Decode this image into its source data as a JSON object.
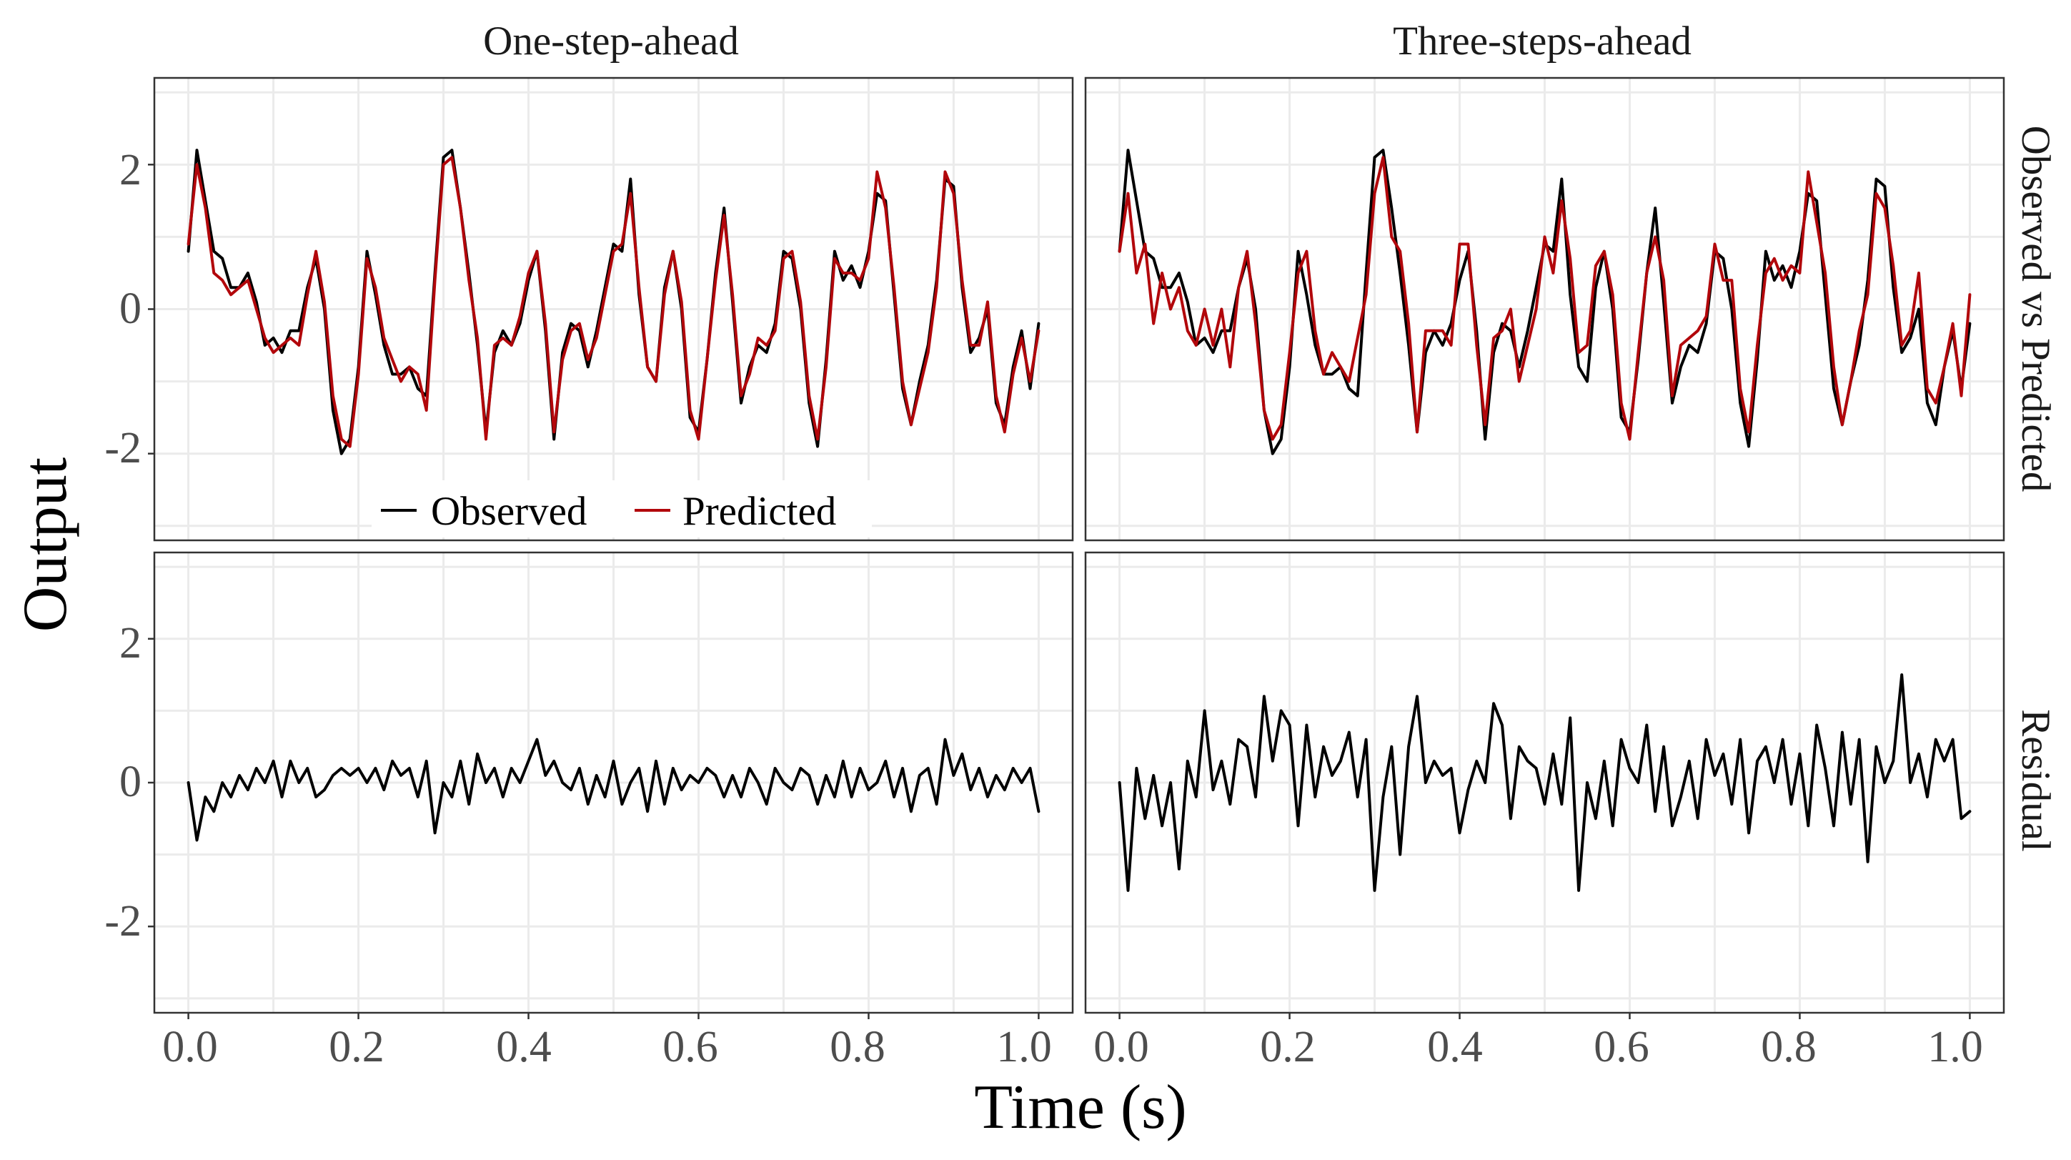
{
  "chart_data": {
    "type": "line",
    "facets": {
      "columns": [
        "One-step-ahead",
        "Three-steps-ahead"
      ],
      "rows": [
        "Observed vs Predicted",
        "Residual"
      ]
    },
    "xlabel": "Time (s)",
    "ylabel": "Output",
    "xlim": [
      0.0,
      1.0
    ],
    "ylim": [
      -3.2,
      3.2
    ],
    "x_ticks": [
      "0.0",
      "0.2",
      "0.4",
      "0.6",
      "0.8",
      "1.0"
    ],
    "x_tick_values": [
      0.0,
      0.2,
      0.4,
      0.6,
      0.8,
      1.0
    ],
    "y_ticks": [
      "-2",
      "0",
      "2"
    ],
    "y_tick_values": [
      -2,
      0,
      2
    ],
    "legend": {
      "position": "bottom-center of top-left panel",
      "entries": [
        {
          "label": "Observed",
          "color": "#000000"
        },
        {
          "label": "Predicted",
          "color": "#b2070b"
        }
      ]
    },
    "x": [
      0.0,
      0.01,
      0.02,
      0.03,
      0.04,
      0.05,
      0.06,
      0.07,
      0.08,
      0.09,
      0.1,
      0.11,
      0.12,
      0.13,
      0.14,
      0.15,
      0.16,
      0.17,
      0.18,
      0.19,
      0.2,
      0.21,
      0.22,
      0.23,
      0.24,
      0.25,
      0.26,
      0.27,
      0.28,
      0.29,
      0.3,
      0.31,
      0.32,
      0.33,
      0.34,
      0.35,
      0.36,
      0.37,
      0.38,
      0.39,
      0.4,
      0.41,
      0.42,
      0.43,
      0.44,
      0.45,
      0.46,
      0.47,
      0.48,
      0.49,
      0.5,
      0.51,
      0.52,
      0.53,
      0.54,
      0.55,
      0.56,
      0.57,
      0.58,
      0.59,
      0.6,
      0.61,
      0.62,
      0.63,
      0.64,
      0.65,
      0.66,
      0.67,
      0.68,
      0.69,
      0.7,
      0.71,
      0.72,
      0.73,
      0.74,
      0.75,
      0.76,
      0.77,
      0.78,
      0.79,
      0.8,
      0.81,
      0.82,
      0.83,
      0.84,
      0.85,
      0.86,
      0.87,
      0.88,
      0.89,
      0.9,
      0.91,
      0.92,
      0.93,
      0.94,
      0.95,
      0.96,
      0.97,
      0.98,
      0.99,
      1.0
    ],
    "observed": [
      0.8,
      2.2,
      1.5,
      0.8,
      0.7,
      0.3,
      0.3,
      0.5,
      0.1,
      -0.5,
      -0.4,
      -0.6,
      -0.3,
      -0.3,
      0.3,
      0.7,
      0.0,
      -1.4,
      -2.0,
      -1.8,
      -0.8,
      0.8,
      0.2,
      -0.5,
      -0.9,
      -0.9,
      -0.8,
      -1.1,
      -1.2,
      0.5,
      2.1,
      2.2,
      1.4,
      0.5,
      -0.5,
      -1.7,
      -0.6,
      -0.3,
      -0.5,
      -0.2,
      0.4,
      0.8,
      -0.3,
      -1.8,
      -0.6,
      -0.2,
      -0.3,
      -0.8,
      -0.3,
      0.3,
      0.9,
      0.8,
      1.8,
      0.2,
      -0.8,
      -1.0,
      0.3,
      0.8,
      0.0,
      -1.5,
      -1.7,
      -0.7,
      0.5,
      1.4,
      0.1,
      -1.3,
      -0.8,
      -0.5,
      -0.6,
      -0.2,
      0.8,
      0.7,
      0.0,
      -1.3,
      -1.9,
      -0.7,
      0.8,
      0.4,
      0.6,
      0.3,
      0.8,
      1.6,
      1.5,
      0.2,
      -1.1,
      -1.6,
      -1.0,
      -0.5,
      0.4,
      1.8,
      1.7,
      0.3,
      -0.6,
      -0.4,
      0.0,
      -1.3,
      -1.6,
      -0.8,
      -0.3,
      -1.1,
      -0.2
    ],
    "predicted_one_step": [
      0.9,
      2.0,
      1.4,
      0.5,
      0.4,
      0.2,
      0.3,
      0.4,
      0.0,
      -0.4,
      -0.6,
      -0.5,
      -0.4,
      -0.5,
      0.2,
      0.8,
      0.1,
      -1.2,
      -1.8,
      -1.9,
      -0.9,
      0.7,
      0.3,
      -0.4,
      -0.7,
      -1.0,
      -0.8,
      -0.9,
      -1.4,
      0.4,
      2.0,
      2.1,
      1.4,
      0.4,
      -0.4,
      -1.8,
      -0.5,
      -0.4,
      -0.5,
      -0.1,
      0.5,
      0.8,
      -0.2,
      -1.7,
      -0.7,
      -0.3,
      -0.2,
      -0.7,
      -0.4,
      0.2,
      0.8,
      0.9,
      1.6,
      0.3,
      -0.8,
      -1.0,
      0.2,
      0.8,
      0.1,
      -1.4,
      -1.8,
      -0.7,
      0.4,
      1.3,
      0.2,
      -1.2,
      -0.9,
      -0.4,
      -0.5,
      -0.3,
      0.7,
      0.8,
      0.1,
      -1.2,
      -1.8,
      -0.8,
      0.7,
      0.5,
      0.5,
      0.4,
      0.7,
      1.9,
      1.4,
      0.3,
      -1.0,
      -1.6,
      -1.1,
      -0.6,
      0.3,
      1.9,
      1.6,
      0.4,
      -0.5,
      -0.5,
      0.1,
      -1.2,
      -1.7,
      -0.9,
      -0.4,
      -1.0,
      -0.3
    ],
    "predicted_three_step": [
      0.8,
      1.6,
      0.5,
      0.9,
      -0.2,
      0.5,
      0.0,
      0.3,
      -0.3,
      -0.5,
      0.0,
      -0.5,
      0.0,
      -0.8,
      0.3,
      0.8,
      -0.2,
      -1.4,
      -1.8,
      -1.6,
      -0.6,
      0.5,
      0.8,
      -0.3,
      -0.9,
      -0.6,
      -0.8,
      -1.0,
      -0.4,
      0.2,
      1.6,
      2.1,
      1.0,
      0.8,
      -0.2,
      -1.7,
      -0.3,
      -0.3,
      -0.3,
      -0.5,
      0.9,
      0.9,
      -0.5,
      -1.6,
      -0.4,
      -0.3,
      0.0,
      -1.0,
      -0.5,
      0.0,
      1.0,
      0.5,
      1.5,
      0.7,
      -0.6,
      -0.5,
      0.6,
      0.8,
      0.2,
      -1.3,
      -1.8,
      -0.6,
      0.5,
      1.0,
      0.4,
      -1.2,
      -0.5,
      -0.4,
      -0.3,
      -0.1,
      0.9,
      0.4,
      0.4,
      -1.1,
      -1.7,
      -0.5,
      0.5,
      0.7,
      0.4,
      0.6,
      0.5,
      1.9,
      1.2,
      0.5,
      -0.8,
      -1.6,
      -1.0,
      -0.3,
      0.2,
      1.6,
      1.4,
      0.6,
      -0.5,
      -0.3,
      0.5,
      -1.1,
      -1.3,
      -0.8,
      -0.2,
      -1.2,
      0.2
    ],
    "residual_one_step": [
      0.0,
      -0.8,
      -0.2,
      -0.4,
      0.0,
      -0.2,
      0.1,
      -0.1,
      0.2,
      0.0,
      0.3,
      -0.2,
      0.3,
      0.0,
      0.2,
      -0.2,
      -0.1,
      0.1,
      0.2,
      0.1,
      0.2,
      0.0,
      0.2,
      -0.1,
      0.3,
      0.1,
      0.2,
      -0.2,
      0.3,
      -0.7,
      0.0,
      -0.2,
      0.3,
      -0.3,
      0.4,
      0.0,
      0.2,
      -0.2,
      0.2,
      0.0,
      0.3,
      0.6,
      0.1,
      0.3,
      0.0,
      -0.1,
      0.2,
      -0.3,
      0.1,
      -0.2,
      0.3,
      -0.3,
      0.0,
      0.2,
      -0.4,
      0.3,
      -0.3,
      0.2,
      -0.1,
      0.1,
      0.0,
      0.2,
      0.1,
      -0.2,
      0.1,
      -0.2,
      0.2,
      0.0,
      -0.3,
      0.2,
      0.0,
      -0.1,
      0.2,
      0.1,
      -0.3,
      0.1,
      -0.2,
      0.3,
      -0.2,
      0.2,
      -0.1,
      0.0,
      0.3,
      -0.2,
      0.2,
      -0.4,
      0.1,
      0.2,
      -0.3,
      0.6,
      0.1,
      0.4,
      -0.1,
      0.2,
      -0.2,
      0.1,
      -0.1,
      0.2,
      0.0,
      0.2,
      -0.4
    ],
    "residual_three_step": [
      0.0,
      -1.5,
      0.2,
      -0.5,
      0.1,
      -0.6,
      0.0,
      -1.2,
      0.3,
      -0.2,
      1.0,
      -0.1,
      0.3,
      -0.3,
      0.6,
      0.5,
      -0.2,
      1.2,
      0.3,
      1.0,
      0.8,
      -0.6,
      0.8,
      -0.2,
      0.5,
      0.1,
      0.3,
      0.7,
      -0.2,
      0.6,
      -1.5,
      -0.2,
      0.5,
      -1.0,
      0.5,
      1.2,
      0.0,
      0.3,
      0.1,
      0.2,
      -0.7,
      -0.1,
      0.3,
      0.0,
      1.1,
      0.8,
      -0.5,
      0.5,
      0.3,
      0.2,
      -0.3,
      0.4,
      -0.3,
      0.9,
      -1.5,
      0.0,
      -0.5,
      0.3,
      -0.6,
      0.6,
      0.2,
      0.0,
      0.8,
      -0.4,
      0.5,
      -0.6,
      -0.2,
      0.3,
      -0.5,
      0.6,
      0.1,
      0.4,
      -0.3,
      0.6,
      -0.7,
      0.3,
      0.5,
      0.0,
      0.6,
      -0.3,
      0.4,
      -0.6,
      0.8,
      0.2,
      -0.6,
      0.7,
      -0.3,
      0.6,
      -1.1,
      0.5,
      0.0,
      0.3,
      1.5,
      0.0,
      0.4,
      -0.2,
      0.6,
      0.3,
      0.6,
      -0.5,
      -0.4
    ]
  },
  "colors": {
    "observed": "#000000",
    "predicted": "#b2070b",
    "residual": "#000000"
  }
}
